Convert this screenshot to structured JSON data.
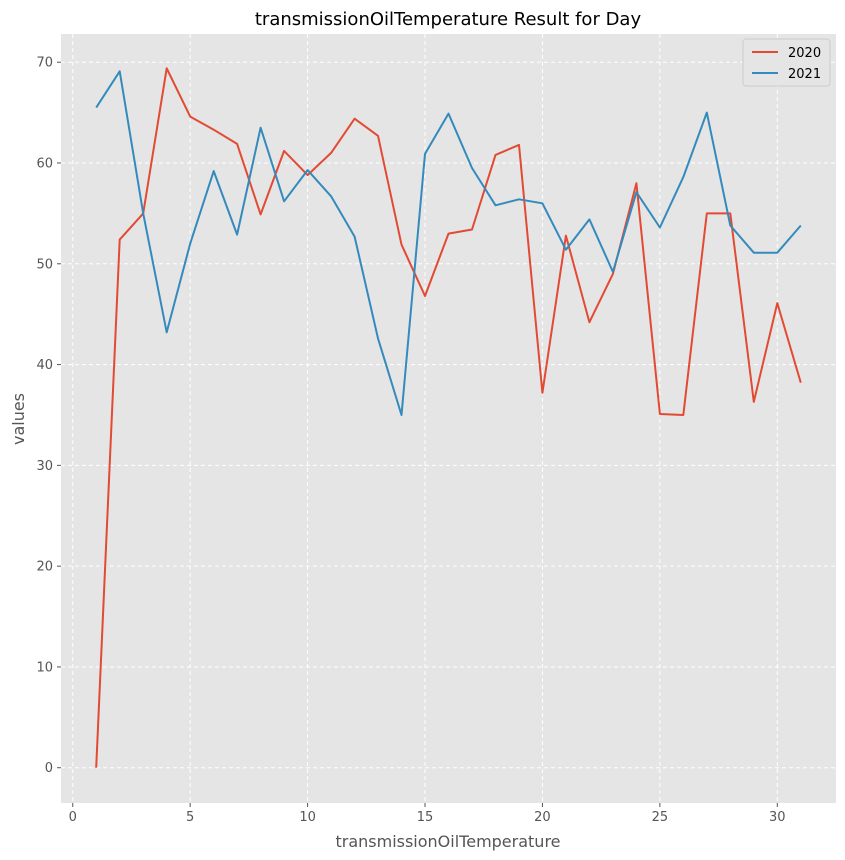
{
  "chart_data": {
    "type": "line",
    "title": "transmissionOilTemperature Result for Day",
    "xlabel": "transmissionOilTemperature",
    "ylabel": "values",
    "xlim": [
      -0.5,
      32.5
    ],
    "ylim": [
      -3.5,
      72.8
    ],
    "xticks": [
      0,
      5,
      10,
      15,
      20,
      25,
      30
    ],
    "yticks": [
      0,
      10,
      20,
      30,
      40,
      50,
      60,
      70
    ],
    "grid": true,
    "legend_position": "top-right",
    "x": [
      1,
      2,
      3,
      4,
      5,
      6,
      7,
      8,
      9,
      10,
      11,
      12,
      13,
      14,
      15,
      16,
      17,
      18,
      19,
      20,
      21,
      22,
      23,
      24,
      25,
      26,
      27,
      28,
      29,
      30,
      31
    ],
    "series": [
      {
        "name": "2020",
        "color": "#e24a33",
        "values": [
          0.0,
          52.4,
          55.0,
          69.4,
          64.6,
          63.3,
          61.9,
          54.9,
          61.2,
          58.8,
          61.0,
          64.4,
          62.7,
          51.9,
          46.8,
          53.0,
          53.4,
          60.8,
          61.8,
          37.2,
          52.8,
          44.2,
          49.0,
          58.0,
          35.1,
          35.0,
          55.0,
          55.0,
          36.3,
          46.1,
          38.2
        ]
      },
      {
        "name": "2021",
        "color": "#348abd",
        "values": [
          65.5,
          69.1,
          55.0,
          43.2,
          52.0,
          59.2,
          52.9,
          63.5,
          56.2,
          59.3,
          56.7,
          52.7,
          42.6,
          35.0,
          60.9,
          64.9,
          59.5,
          55.8,
          56.4,
          56.0,
          51.4,
          54.4,
          49.2,
          57.1,
          53.6,
          58.6,
          65.0,
          53.8,
          51.1,
          51.1,
          53.8
        ]
      }
    ]
  }
}
